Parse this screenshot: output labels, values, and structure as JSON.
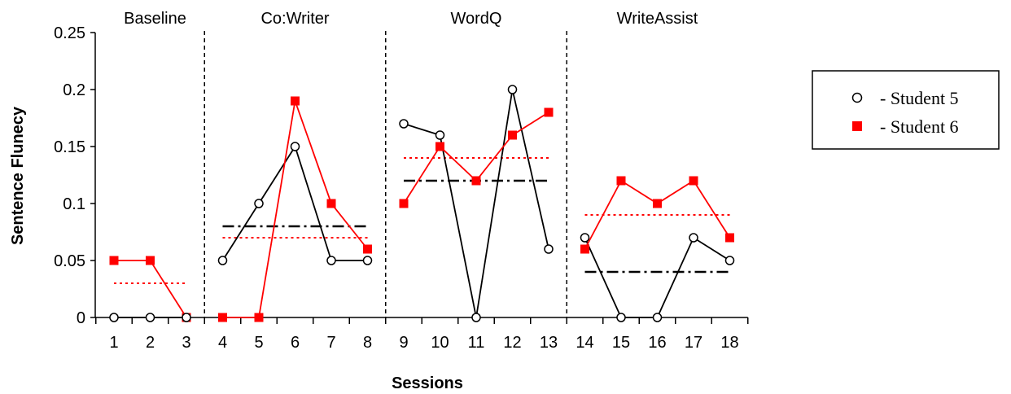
{
  "chart_data": {
    "type": "line",
    "xlabel": "Sessions",
    "ylabel": "Sentence Flunecy",
    "ylim": [
      0,
      0.25
    ],
    "yticks": [
      "0",
      "0.05",
      "0.1",
      "0.15",
      "0.2",
      "0.25"
    ],
    "ytick_values": [
      0,
      0.05,
      0.1,
      0.15,
      0.2,
      0.25
    ],
    "x": [
      1,
      2,
      3,
      4,
      5,
      6,
      7,
      8,
      9,
      10,
      11,
      12,
      13,
      14,
      15,
      16,
      17,
      18
    ],
    "xticks": [
      "1",
      "2",
      "3",
      "4",
      "5",
      "6",
      "7",
      "8",
      "9",
      "10",
      "11",
      "12",
      "13",
      "14",
      "15",
      "16",
      "17",
      "18"
    ],
    "phases": [
      {
        "label": "Baseline",
        "sessions": [
          1,
          2,
          3
        ]
      },
      {
        "label": "Co:Writer",
        "sessions": [
          4,
          5,
          6,
          7,
          8
        ]
      },
      {
        "label": "WordQ",
        "sessions": [
          9,
          10,
          11,
          12,
          13
        ]
      },
      {
        "label": "WriteAssist",
        "sessions": [
          14,
          15,
          16,
          17,
          18
        ]
      }
    ],
    "phase_dividers_after_session": [
      3,
      8,
      13
    ],
    "series": [
      {
        "name": "- Student 5",
        "color": "#000000",
        "marker": "open-circle",
        "values": [
          0,
          0,
          0,
          0.05,
          0.1,
          0.15,
          0.05,
          0.05,
          0.17,
          0.16,
          0,
          0.2,
          0.06,
          0.07,
          0,
          0,
          0.07,
          0.05
        ],
        "phase_means": [
          {
            "phase": "Baseline",
            "value": null
          },
          {
            "phase": "Co:Writer",
            "value": 0.08
          },
          {
            "phase": "WordQ",
            "value": 0.12
          },
          {
            "phase": "WriteAssist",
            "value": 0.04
          }
        ],
        "mean_line_style": "dash-dot"
      },
      {
        "name": "- Student 6",
        "color": "#ff0000",
        "marker": "filled-square",
        "values": [
          0.05,
          0.05,
          0,
          0,
          0,
          0.19,
          0.1,
          0.06,
          0.1,
          0.15,
          0.12,
          0.16,
          0.18,
          0.06,
          0.12,
          0.1,
          0.12,
          0.07
        ],
        "phase_means": [
          {
            "phase": "Baseline",
            "value": 0.03
          },
          {
            "phase": "Co:Writer",
            "value": 0.07
          },
          {
            "phase": "WordQ",
            "value": 0.14
          },
          {
            "phase": "WriteAssist",
            "value": 0.09
          }
        ],
        "mean_line_style": "dotted"
      }
    ],
    "legend": {
      "position": "right",
      "entries": [
        "- Student 5",
        "- Student 6"
      ]
    },
    "grid": false
  }
}
